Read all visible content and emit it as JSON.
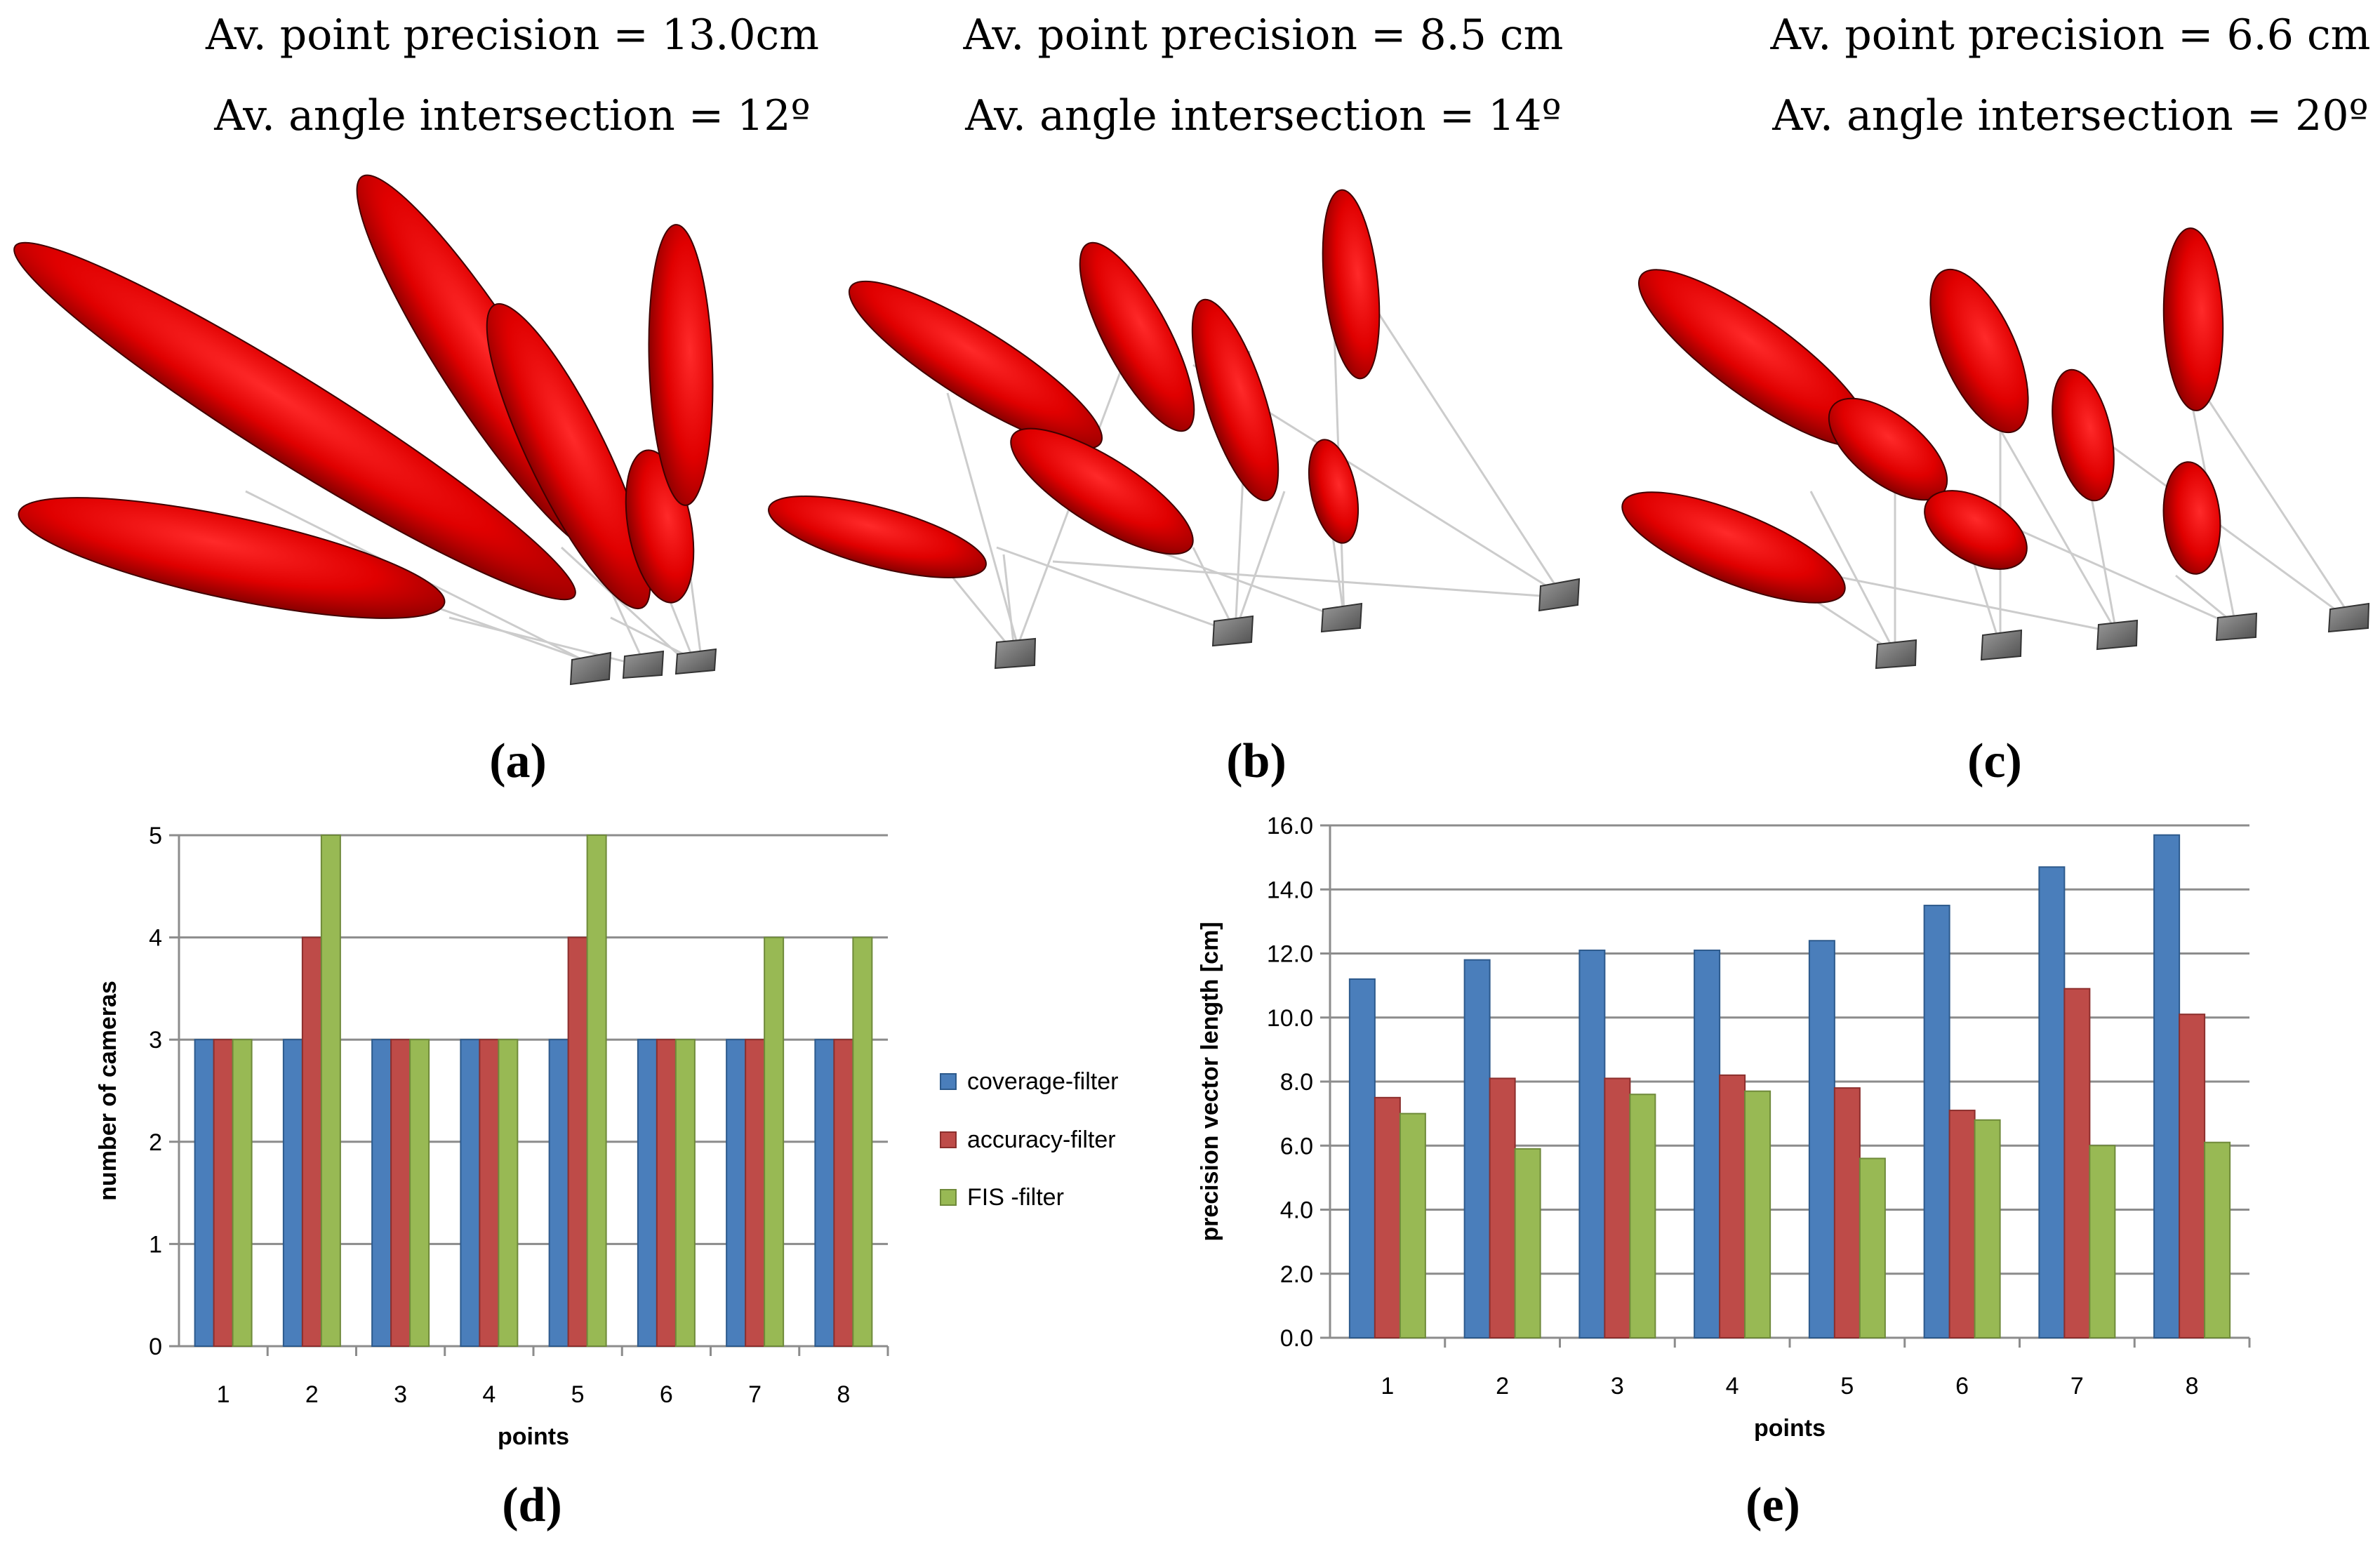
{
  "panels": [
    {
      "id": "a",
      "precision": "Av. point precision = 13.0cm",
      "angle": "Av. angle intersection = 12º",
      "label": "(a)"
    },
    {
      "id": "b",
      "precision": "Av. point precision = 8.5 cm",
      "angle": "Av. angle intersection = 14º",
      "label": "(b)"
    },
    {
      "id": "c",
      "precision": "Av. point precision = 6.6 cm",
      "angle": "Av. angle intersection = 20º",
      "label": "(c)"
    }
  ],
  "label_d": "(d)",
  "label_e": "(e)",
  "colors": {
    "coverage": "#4a7ebb",
    "accuracy": "#be4b48",
    "fis": "#98b954",
    "ellipsoid": "#e60000",
    "camera": "#707070"
  },
  "chart_data": [
    {
      "type": "bar",
      "title": "",
      "xlabel": "points",
      "ylabel": "number of cameras",
      "categories": [
        "1",
        "2",
        "3",
        "4",
        "5",
        "6",
        "7",
        "8"
      ],
      "ylim": [
        0,
        5
      ],
      "yticks": [
        "0",
        "1",
        "2",
        "3",
        "4",
        "5"
      ],
      "legend_position": "right",
      "series": [
        {
          "name": "coverage-filter",
          "values": [
            3,
            3,
            3,
            3,
            3,
            3,
            3,
            3
          ]
        },
        {
          "name": "accuracy-filter",
          "values": [
            3,
            4,
            3,
            3,
            4,
            3,
            3,
            3
          ]
        },
        {
          "name": "FIS -filter",
          "values": [
            3,
            5,
            3,
            3,
            5,
            3,
            4,
            4
          ]
        }
      ]
    },
    {
      "type": "bar",
      "title": "",
      "xlabel": "points",
      "ylabel": "precision vector length [cm]",
      "categories": [
        "1",
        "2",
        "3",
        "4",
        "5",
        "6",
        "7",
        "8"
      ],
      "ylim": [
        0,
        16
      ],
      "yticks": [
        "0.0",
        "2.0",
        "4.0",
        "6.0",
        "8.0",
        "10.0",
        "12.0",
        "14.0",
        "16.0"
      ],
      "series": [
        {
          "name": "coverage-filter",
          "values": [
            11.2,
            11.8,
            12.1,
            12.1,
            12.4,
            13.5,
            14.7,
            15.7
          ]
        },
        {
          "name": "accuracy-filter",
          "values": [
            7.5,
            8.1,
            8.1,
            8.2,
            7.8,
            7.1,
            10.9,
            10.1
          ]
        },
        {
          "name": "FIS -filter",
          "values": [
            7.0,
            5.9,
            7.6,
            7.7,
            5.6,
            6.8,
            6.0,
            6.1
          ]
        }
      ]
    }
  ]
}
